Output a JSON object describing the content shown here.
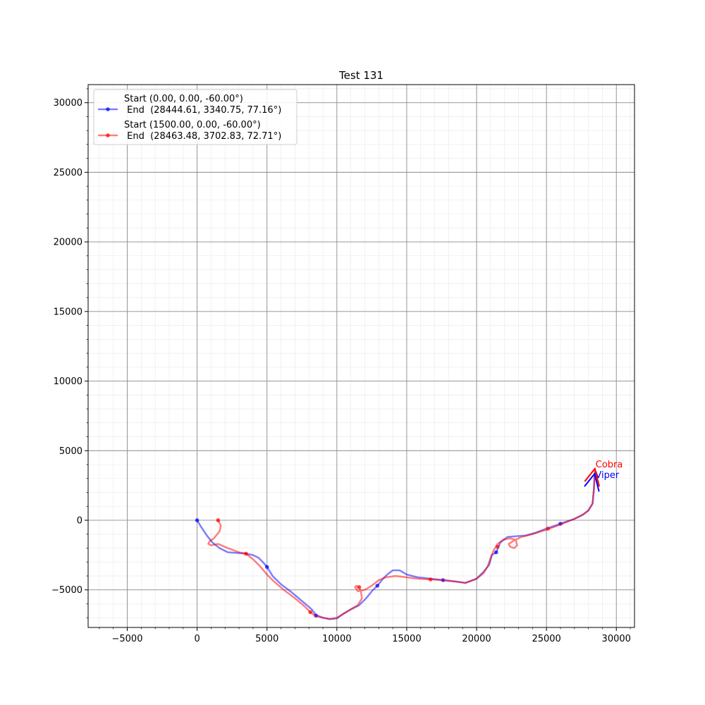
{
  "chart_data": {
    "type": "line",
    "title": "Test 131",
    "xlabel": "",
    "ylabel": "",
    "xlim": [
      -7800,
      31300
    ],
    "ylim": [
      -7700,
      31300
    ],
    "xticks": [
      -5000,
      0,
      5000,
      10000,
      15000,
      20000,
      25000,
      30000
    ],
    "yticks": [
      -5000,
      0,
      5000,
      10000,
      15000,
      20000,
      25000,
      30000
    ],
    "xtick_labels": [
      "−5000",
      "0",
      "5000",
      "10000",
      "15000",
      "20000",
      "25000",
      "30000"
    ],
    "ytick_labels": [
      "−5000",
      "0",
      "5000",
      "10000",
      "15000",
      "20000",
      "25000",
      "30000"
    ],
    "grid": true,
    "minor_grid": true,
    "legend_position": "top-left",
    "series": [
      {
        "name": "Start (0.00, 0.00, -60.00°)\n End  (28444.61, 3340.75, 77.16°)",
        "legend_line1": "Start (0.00, 0.00, -60.00°)",
        "legend_line2": " End  (28444.61, 3340.75, 77.16°)",
        "color": "#0000ff",
        "x": [
          0,
          300,
          700,
          1100,
          1600,
          2200,
          2900,
          3500,
          4000,
          4400,
          4700,
          5000,
          5400,
          6000,
          6800,
          7500,
          8200,
          8500,
          9000,
          9500,
          10000,
          10500,
          11000,
          11600,
          12100,
          12500,
          12900,
          13300,
          13600,
          14000,
          14500,
          15000,
          15800,
          16700,
          17600,
          18500,
          19200,
          20000,
          20500,
          20900,
          21100,
          21400,
          21700,
          22200,
          22800,
          23500,
          24200,
          25000,
          26000,
          27000,
          27600,
          28000,
          28300,
          28400,
          28444.61
        ],
        "y": [
          0,
          -500,
          -1100,
          -1600,
          -2000,
          -2300,
          -2350,
          -2400,
          -2500,
          -2700,
          -3000,
          -3350,
          -4000,
          -4600,
          -5200,
          -5800,
          -6400,
          -6800,
          -7000,
          -7100,
          -7050,
          -6700,
          -6400,
          -6100,
          -5600,
          -5100,
          -4700,
          -4200,
          -3900,
          -3600,
          -3600,
          -3900,
          -4100,
          -4200,
          -4300,
          -4400,
          -4500,
          -4200,
          -3700,
          -3200,
          -2500,
          -2300,
          -1600,
          -1200,
          -1150,
          -1100,
          -900,
          -600,
          -250,
          100,
          400,
          700,
          1200,
          2300,
          3340.75
        ],
        "markers_x": [
          0,
          5000,
          8500,
          12900,
          17600,
          21400,
          26000
        ],
        "markers_y": [
          0,
          -3350,
          -6850,
          -4700,
          -4300,
          -2300,
          -250
        ],
        "end_label": "Viper"
      },
      {
        "name": "Start (1500.00, 0.00, -60.00°)\n End  (28463.48, 3702.83, 72.71°)",
        "legend_line1": "Start (1500.00, 0.00, -60.00°)",
        "legend_line2": " End  (28463.48, 3702.83, 72.71°)",
        "color": "#ff0000",
        "x": [
          1500,
          1700,
          1600,
          1200,
          900,
          800,
          1000,
          1500,
          2200,
          3000,
          3500,
          4000,
          4500,
          5000,
          5500,
          6200,
          7000,
          7700,
          8100,
          8500,
          9000,
          9500,
          10000,
          10500,
          11000,
          11500,
          11800,
          11700,
          11400,
          11300,
          11500,
          12000,
          12500,
          13000,
          13500,
          14200,
          15000,
          15800,
          16700,
          17600,
          18500,
          19200,
          20000,
          20500,
          20800,
          21000,
          21200,
          21500,
          21900,
          22400,
          22800,
          22900,
          22700,
          22400,
          22300,
          22600,
          23200,
          24000,
          25100,
          26000,
          27000,
          27600,
          28000,
          28300,
          28400,
          28463.48
        ],
        "y": [
          0,
          -400,
          -800,
          -1300,
          -1500,
          -1700,
          -1800,
          -1700,
          -2000,
          -2300,
          -2400,
          -2800,
          -3300,
          -3900,
          -4400,
          -5000,
          -5600,
          -6200,
          -6600,
          -6900,
          -7000,
          -7100,
          -7000,
          -6700,
          -6400,
          -6100,
          -5600,
          -5000,
          -4700,
          -4800,
          -5100,
          -5000,
          -4700,
          -4300,
          -4100,
          -4000,
          -4100,
          -4200,
          -4250,
          -4300,
          -4400,
          -4500,
          -4200,
          -3800,
          -3300,
          -2700,
          -2200,
          -1700,
          -1400,
          -1300,
          -1400,
          -1800,
          -2000,
          -1900,
          -1700,
          -1500,
          -1200,
          -1000,
          -650,
          -300,
          100,
          400,
          700,
          1200,
          2300,
          3702.83
        ],
        "markers_x": [
          1500,
          3500,
          8100,
          11600,
          16700,
          21500,
          25100
        ],
        "markers_y": [
          0,
          -2400,
          -6600,
          -4800,
          -4250,
          -1900,
          -600
        ],
        "end_label": "Cobra"
      }
    ],
    "annotations": [
      "Cobra",
      "Viper"
    ]
  }
}
